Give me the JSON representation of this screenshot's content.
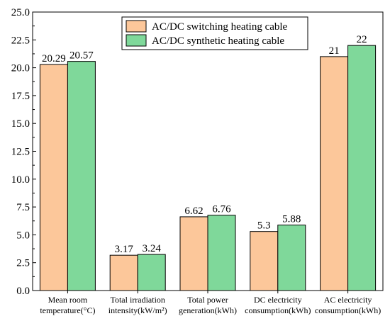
{
  "chart_data": {
    "type": "bar",
    "categories": [
      [
        "Mean room",
        "temperature(°C)"
      ],
      [
        "Total irradiation",
        "intensity(kW/m²)"
      ],
      [
        "Total power",
        "generation(kWh)"
      ],
      [
        "DC electricity",
        "consumption(kWh)"
      ],
      [
        "AC electricity",
        "consumption(kWh)"
      ]
    ],
    "series": [
      {
        "name": "AC/DC switching heating cable",
        "values": [
          20.29,
          3.17,
          6.62,
          5.3,
          21
        ],
        "labels": [
          "20.29",
          "3.17",
          "6.62",
          "5.3",
          "21"
        ],
        "color": "#fcc79a"
      },
      {
        "name": "AC/DC synthetic heating cable",
        "values": [
          20.57,
          3.24,
          6.76,
          5.88,
          22
        ],
        "labels": [
          "20.57",
          "3.24",
          "6.76",
          "5.88",
          "22"
        ],
        "color": "#7fd89a"
      }
    ],
    "ylim": [
      0,
      25
    ],
    "yticks": [
      "0.0",
      "2.5",
      "5.0",
      "7.5",
      "10.0",
      "12.5",
      "15.0",
      "17.5",
      "20.0",
      "22.5",
      "25.0"
    ],
    "xlabel": "",
    "ylabel": "",
    "title": "",
    "legend_position": "top-center",
    "grid": false
  }
}
